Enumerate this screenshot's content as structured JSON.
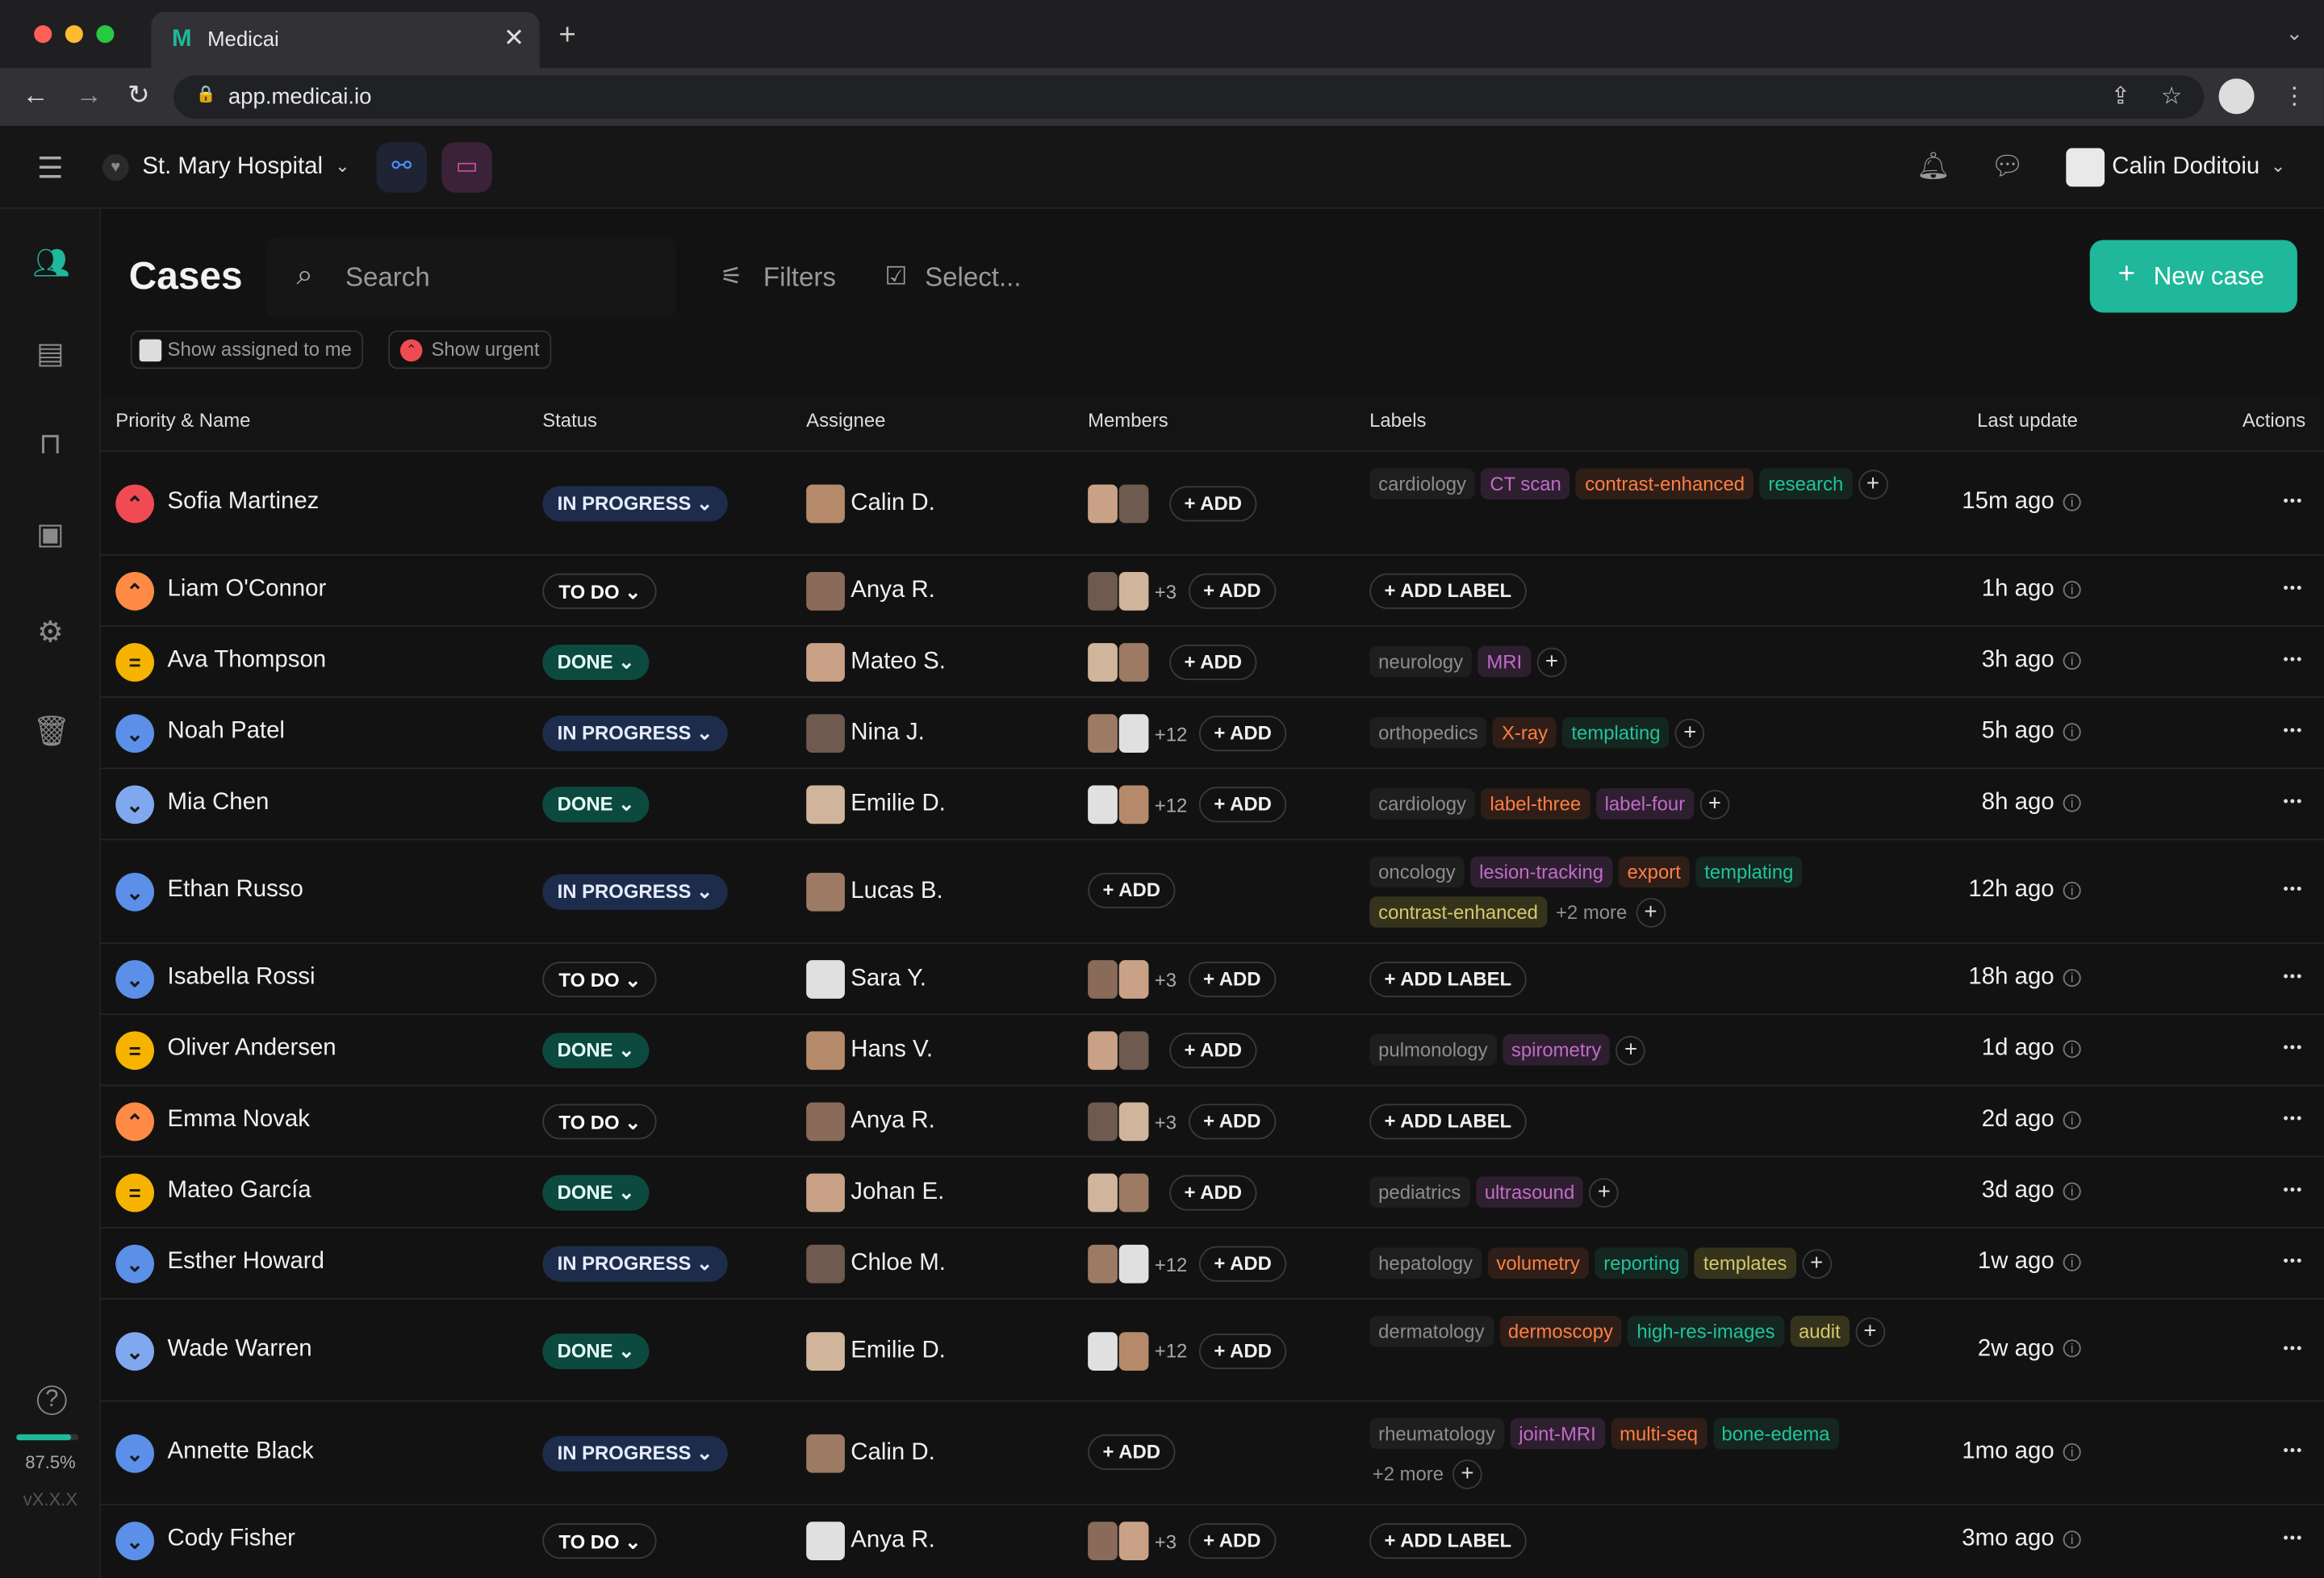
{
  "browser": {
    "tab_title": "Medicai",
    "url": "app.medicai.io"
  },
  "app": {
    "hospital": "St. Mary Hospital",
    "user": "Calin Doditoiu",
    "new_case": "New case"
  },
  "page": {
    "title": "Cases",
    "search_placeholder": "Search",
    "filters": "Filters",
    "select": "Select...",
    "show_assigned": "Show assigned to me",
    "show_urgent": "Show urgent"
  },
  "sidebar": {
    "progress": "87.5%",
    "version": "vX.X.X",
    "progress_value": 0.875
  },
  "table": {
    "headers": {
      "name": "Priority & Name",
      "status": "Status",
      "assignee": "Assignee",
      "members": "Members",
      "labels": "Labels",
      "update": "Last update",
      "actions": "Actions"
    },
    "rows": [
      {
        "priority": "urgent",
        "name": "Sofia Martinez",
        "status": "IN PROGRESS",
        "assignee": "Calin D.",
        "members": "",
        "labels": [
          [
            "cardiology",
            "gray"
          ],
          [
            "CT scan",
            "purple"
          ],
          [
            "contrast-enhanced",
            "orange"
          ],
          [
            "research",
            "teal"
          ]
        ],
        "update": "15m ago"
      },
      {
        "priority": "high",
        "name": "Liam O'Connor",
        "status": "TO DO",
        "assignee": "Anya R.",
        "members": "+3",
        "labels": [],
        "update": "1h ago"
      },
      {
        "priority": "medium",
        "name": "Ava Thompson",
        "status": "DONE",
        "assignee": "Mateo S.",
        "members": "",
        "labels": [
          [
            "neurology",
            "gray"
          ],
          [
            "MRI",
            "purple"
          ]
        ],
        "update": "3h ago"
      },
      {
        "priority": "low",
        "name": "Noah Patel",
        "status": "IN PROGRESS",
        "assignee": "Nina J.",
        "members": "+12",
        "labels": [
          [
            "orthopedics",
            "gray"
          ],
          [
            "X-ray",
            "orange"
          ],
          [
            "templating",
            "teal"
          ]
        ],
        "update": "5h ago"
      },
      {
        "priority": "lowest",
        "name": "Mia Chen",
        "status": "DONE",
        "assignee": "Emilie D.",
        "members": "+12",
        "labels": [
          [
            "cardiology",
            "gray"
          ],
          [
            "label-three",
            "orange"
          ],
          [
            "label-four",
            "purple"
          ]
        ],
        "update": "8h ago"
      },
      {
        "priority": "low",
        "name": "Ethan Russo",
        "status": "IN PROGRESS",
        "assignee": "Lucas B.",
        "members": "none",
        "labels": [
          [
            "oncology",
            "gray"
          ],
          [
            "lesion-tracking",
            "purple"
          ],
          [
            "export",
            "orange"
          ],
          [
            "templating",
            "teal"
          ],
          [
            "contrast-enhanced",
            "olive"
          ]
        ],
        "more": "+2 more",
        "update": "12h ago"
      },
      {
        "priority": "low",
        "name": "Isabella Rossi",
        "status": "TO DO",
        "assignee": "Sara Y.",
        "members": "+3",
        "labels": [],
        "update": "18h ago"
      },
      {
        "priority": "medium",
        "name": "Oliver Andersen",
        "status": "DONE",
        "assignee": "Hans V.",
        "members": "",
        "labels": [
          [
            "pulmonology",
            "gray"
          ],
          [
            "spirometry",
            "purple"
          ]
        ],
        "update": "1d ago"
      },
      {
        "priority": "high",
        "name": "Emma Novak",
        "status": "TO DO",
        "assignee": "Anya R.",
        "members": "+3",
        "labels": [],
        "update": "2d ago"
      },
      {
        "priority": "medium",
        "name": "Mateo García",
        "status": "DONE",
        "assignee": "Johan E.",
        "members": "",
        "labels": [
          [
            "pediatrics",
            "gray"
          ],
          [
            "ultrasound",
            "purple"
          ]
        ],
        "update": "3d ago"
      },
      {
        "priority": "low",
        "name": "Esther Howard",
        "status": "IN PROGRESS",
        "assignee": "Chloe M.",
        "members": "+12",
        "labels": [
          [
            "hepatology",
            "gray"
          ],
          [
            "volumetry",
            "orange"
          ],
          [
            "reporting",
            "teal"
          ],
          [
            "templates",
            "olive"
          ]
        ],
        "update": "1w ago"
      },
      {
        "priority": "lowest",
        "name": "Wade Warren",
        "status": "DONE",
        "assignee": "Emilie D.",
        "members": "+12",
        "labels": [
          [
            "dermatology",
            "gray"
          ],
          [
            "dermoscopy",
            "orange"
          ],
          [
            "high-res-images",
            "teal"
          ],
          [
            "audit",
            "olive"
          ]
        ],
        "update": "2w ago"
      },
      {
        "priority": "low",
        "name": "Annette Black",
        "status": "IN PROGRESS",
        "assignee": "Calin D.",
        "members": "none",
        "labels": [
          [
            "rheumatology",
            "gray"
          ],
          [
            "joint-MRI",
            "purple"
          ],
          [
            "multi-seq",
            "orange"
          ],
          [
            "bone-edema",
            "teal"
          ]
        ],
        "more": "+2 more",
        "update": "1mo ago"
      },
      {
        "priority": "low",
        "name": "Cody Fisher",
        "status": "TO DO",
        "assignee": "Anya R.",
        "members": "+3",
        "labels": [],
        "update": "3mo ago"
      }
    ]
  },
  "labels_text": {
    "add": "ADD",
    "add_label": "ADD LABEL"
  }
}
